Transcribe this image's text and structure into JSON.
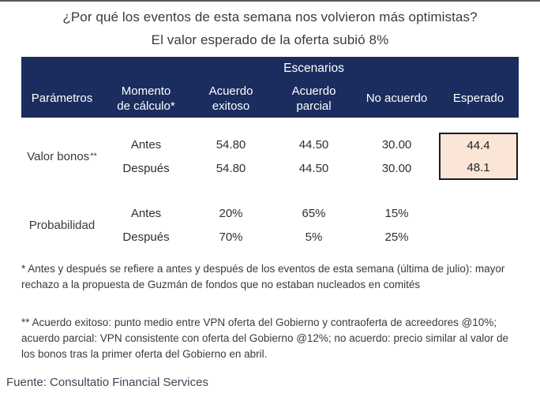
{
  "title": {
    "line1": "¿Por qué los eventos de esta semana nos volvieron más optimistas?",
    "line2": "El valor esperado de la oferta subió 8%"
  },
  "table": {
    "group_header": "Escenarios",
    "columns": {
      "parametros": "Parámetros",
      "momento_line1": "Momento",
      "momento_line2": "de cálculo*",
      "exitoso_line1": "Acuerdo",
      "exitoso_line2": "exitoso",
      "parcial_line1": "Acuerdo",
      "parcial_line2": "parcial",
      "no_acuerdo": "No acuerdo",
      "esperado": "Esperado"
    },
    "valor_bonos": {
      "label": "Valor bonos",
      "label_note": "**",
      "antes": {
        "momento": "Antes",
        "exitoso": "54.80",
        "parcial": "44.50",
        "no_acuerdo": "30.00",
        "esperado": "44.4"
      },
      "despues": {
        "momento": "Después",
        "exitoso": "54.80",
        "parcial": "44.50",
        "no_acuerdo": "30.00",
        "esperado": "48.1"
      }
    },
    "probabilidad": {
      "label": "Probabilidad",
      "antes": {
        "momento": "Antes",
        "exitoso": "20%",
        "parcial": "65%",
        "no_acuerdo": "15%"
      },
      "despues": {
        "momento": "Después",
        "exitoso": "70%",
        "parcial": "5%",
        "no_acuerdo": "25%"
      }
    }
  },
  "footnotes": {
    "note1": "* Antes y después se refiere a antes y después de los eventos de esta semana (última de julio): mayor rechazo a la propuesta de Guzmán de fondos que no estaban nucleados en comités",
    "note2": "** Acuerdo exitoso: punto medio entre VPN oferta del Gobierno y contraoferta de acreedores @10%; acuerdo parcial: VPN consistente con oferta del Gobierno @12%; no acuerdo: precio similar al valor de los bonos tras la primer oferta del Gobierno en abril."
  },
  "source": "Fuente: Consultatio Financial Services",
  "colors": {
    "header_bg": "#1a2d5e",
    "header_text": "#ffffff",
    "highlight_bg": "#fbe5d6",
    "highlight_border": "#1a1a1a",
    "body_text": "#3a3a3a"
  }
}
